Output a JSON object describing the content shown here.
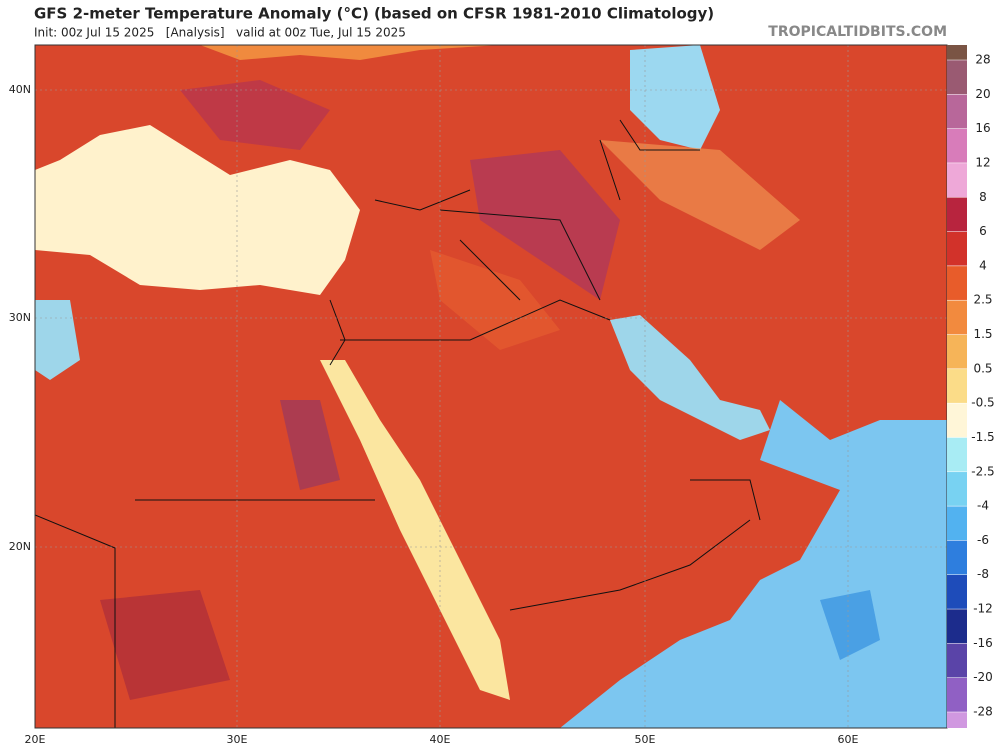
{
  "header": {
    "title": "GFS 2-meter Temperature Anomaly (°C) (based on CFSR 1981-2010 Climatology)",
    "subtitle": "Init: 00z Jul 15 2025   [Analysis]   valid at 00z Tue, Jul 15 2025",
    "site": "TROPICALTIDBITS.COM"
  },
  "map": {
    "lat_labels": [
      "40N",
      "30N",
      "20N"
    ],
    "lon_labels": [
      "20E",
      "30E",
      "40E",
      "50E",
      "60E"
    ]
  },
  "colorbar": {
    "levels": [
      28,
      20,
      16,
      12,
      8,
      6,
      4,
      2.5,
      1.5,
      0.5,
      -0.5,
      -1.5,
      -2.5,
      -4,
      -6,
      -8,
      -12,
      -16,
      -20,
      -28
    ],
    "colors": [
      "#7a5444",
      "#9a5a72",
      "#b8679a",
      "#d87cba",
      "#eea8d8",
      "#b8243e",
      "#d2322a",
      "#e85c2a",
      "#f28a3e",
      "#f6b458",
      "#fbdc88",
      "#fff6d8",
      "#a8ecf4",
      "#78d2f2",
      "#52b2f0",
      "#2e7ede",
      "#1e4cba",
      "#1c2c8c",
      "#5a44a8",
      "#9060c4",
      "#d098e0"
    ]
  }
}
